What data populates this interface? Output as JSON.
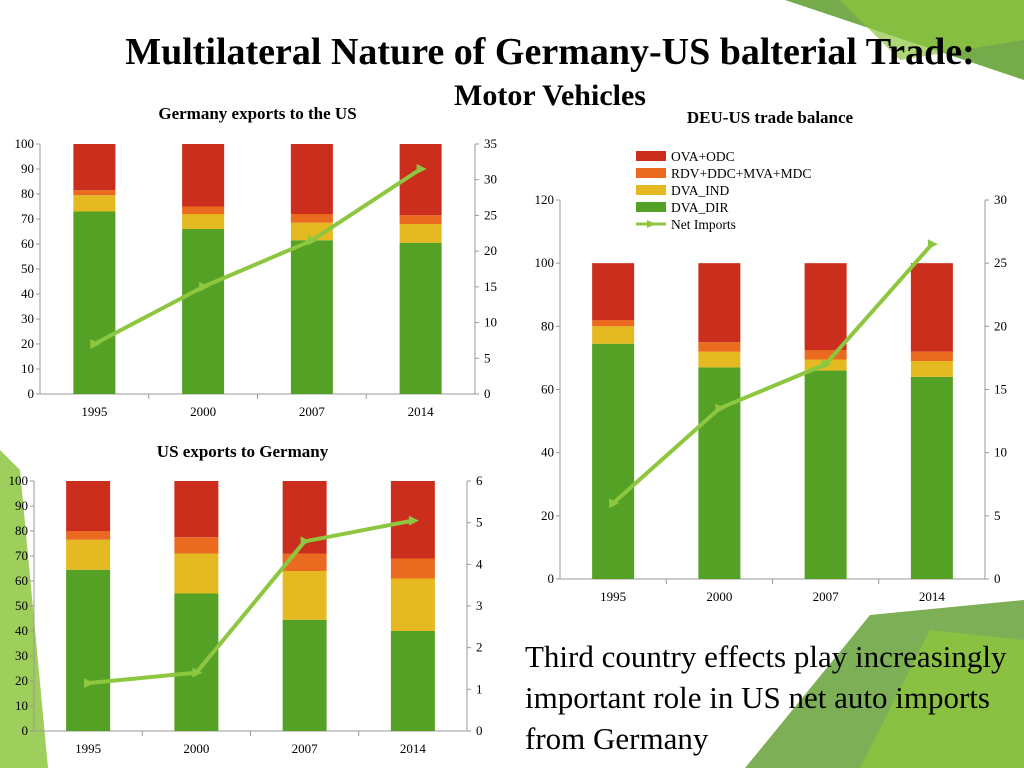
{
  "slide": {
    "title": "Multilateral Nature of Germany-US balterial Trade:",
    "subtitle": "Motor Vehicles",
    "caption": "Third country effects play increasingly important role in US net auto imports from Germany"
  },
  "colors": {
    "OVA+ODC": "#cc2e1e",
    "RDV+DDC+MVA+MDC": "#ea6a1f",
    "DVA_IND": "#e5b922",
    "DVA_DIR": "#55a125",
    "Net Imports": "#8dc63f"
  },
  "chart_data": [
    {
      "id": "chart1",
      "type": "bar",
      "stacked": true,
      "title": "Germany exports to the US",
      "categories": [
        "1995",
        "2000",
        "2007",
        "2014"
      ],
      "series": [
        {
          "name": "DVA_DIR",
          "values": [
            73,
            66,
            61.5,
            60.5
          ]
        },
        {
          "name": "DVA_IND",
          "values": [
            6.5,
            6,
            7,
            7.5
          ]
        },
        {
          "name": "RDV+DDC+MVA+MDC",
          "values": [
            2,
            3,
            3.5,
            3.5
          ]
        },
        {
          "name": "OVA+ODC",
          "values": [
            18.5,
            25,
            28,
            28.5
          ]
        }
      ],
      "line": {
        "name": "Net Imports",
        "values": [
          7,
          15,
          21.5,
          31.5
        ]
      },
      "ylim": [
        0,
        100
      ],
      "y_ticks": [
        "0",
        "10",
        "20",
        "30",
        "40",
        "50",
        "60",
        "70",
        "80",
        "90",
        "100"
      ],
      "y2lim": [
        0,
        35
      ],
      "y2_ticks": [
        "0",
        "5",
        "10",
        "15",
        "20",
        "25",
        "30",
        "35"
      ],
      "legend": "none"
    },
    {
      "id": "chart2",
      "type": "bar",
      "stacked": true,
      "title": "US exports to Germany",
      "categories": [
        "1995",
        "2000",
        "2007",
        "2014"
      ],
      "series": [
        {
          "name": "DVA_DIR",
          "values": [
            64.5,
            55,
            44.5,
            40
          ]
        },
        {
          "name": "DVA_IND",
          "values": [
            12,
            16,
            19.5,
            21
          ]
        },
        {
          "name": "RDV+DDC+MVA+MDC",
          "values": [
            3.5,
            6.5,
            7,
            8
          ]
        },
        {
          "name": "OVA+ODC",
          "values": [
            20,
            22.5,
            29,
            31
          ]
        }
      ],
      "line": {
        "name": "Net Imports",
        "values": [
          1.15,
          1.4,
          4.55,
          5.05
        ]
      },
      "ylim": [
        0,
        100
      ],
      "y_ticks": [
        "0",
        "10",
        "20",
        "30",
        "40",
        "50",
        "60",
        "70",
        "80",
        "90",
        "100"
      ],
      "y2lim": [
        0,
        6
      ],
      "y2_ticks": [
        "0",
        "1",
        "2",
        "3",
        "4",
        "5",
        "6"
      ],
      "legend": "none"
    },
    {
      "id": "chart3",
      "type": "bar",
      "stacked": true,
      "title": "DEU-US trade balance",
      "categories": [
        "1995",
        "2000",
        "2007",
        "2014"
      ],
      "series": [
        {
          "name": "DVA_DIR",
          "values": [
            74.5,
            67,
            66,
            64
          ]
        },
        {
          "name": "DVA_IND",
          "values": [
            5.5,
            5,
            3.5,
            5
          ]
        },
        {
          "name": "RDV+DDC+MVA+MDC",
          "values": [
            2,
            3,
            3,
            3
          ]
        },
        {
          "name": "OVA+ODC",
          "values": [
            18,
            25,
            27.5,
            28
          ]
        }
      ],
      "line": {
        "name": "Net Imports",
        "values": [
          6,
          13.5,
          17,
          26.5
        ]
      },
      "ylim": [
        0,
        120
      ],
      "y_ticks": [
        "0",
        "20",
        "40",
        "60",
        "80",
        "100",
        "120"
      ],
      "y2lim": [
        0,
        30
      ],
      "y2_ticks": [
        "0",
        "5",
        "10",
        "15",
        "20",
        "25",
        "30"
      ],
      "legend": "top-left",
      "legend_items": [
        "OVA+ODC",
        "RDV+DDC+MVA+MDC",
        "DVA_IND",
        "DVA_DIR",
        "Net Imports"
      ]
    }
  ]
}
